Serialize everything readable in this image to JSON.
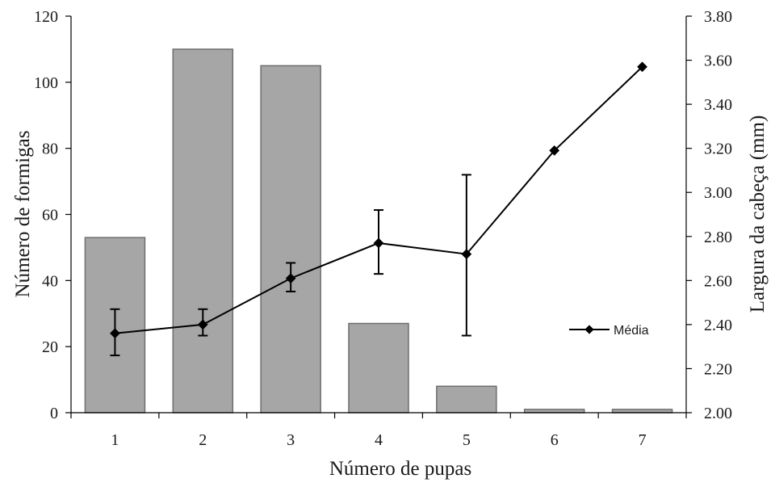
{
  "chart_data": {
    "type": "bar+line",
    "xlabel": "Número de pupas",
    "ylabel_left": "Número de formigas",
    "ylabel_right": "Largura da cabeça (mm)",
    "categories": [
      "1",
      "2",
      "3",
      "4",
      "5",
      "6",
      "7"
    ],
    "ylim_left": [
      0,
      120
    ],
    "yticks_left": [
      "0",
      "20",
      "40",
      "60",
      "80",
      "100",
      "120"
    ],
    "ylim_right": [
      2.0,
      3.8
    ],
    "yticks_right": [
      "2.00",
      "2.20",
      "2.40",
      "2.60",
      "2.80",
      "3.00",
      "3.20",
      "3.40",
      "3.60",
      "3.80"
    ],
    "bars": {
      "values": [
        53,
        110,
        105,
        27,
        8,
        1,
        1
      ],
      "color": "#a6a6a6"
    },
    "line": {
      "name": "Média",
      "values": [
        2.36,
        2.4,
        2.61,
        2.77,
        2.72,
        3.19,
        3.57
      ],
      "error_low": [
        2.26,
        2.35,
        2.55,
        2.63,
        2.35,
        null,
        null
      ],
      "error_high": [
        2.47,
        2.47,
        2.68,
        2.92,
        3.08,
        null,
        null
      ],
      "color": "#000000"
    },
    "legend_position": "right-middle",
    "grid": false
  }
}
